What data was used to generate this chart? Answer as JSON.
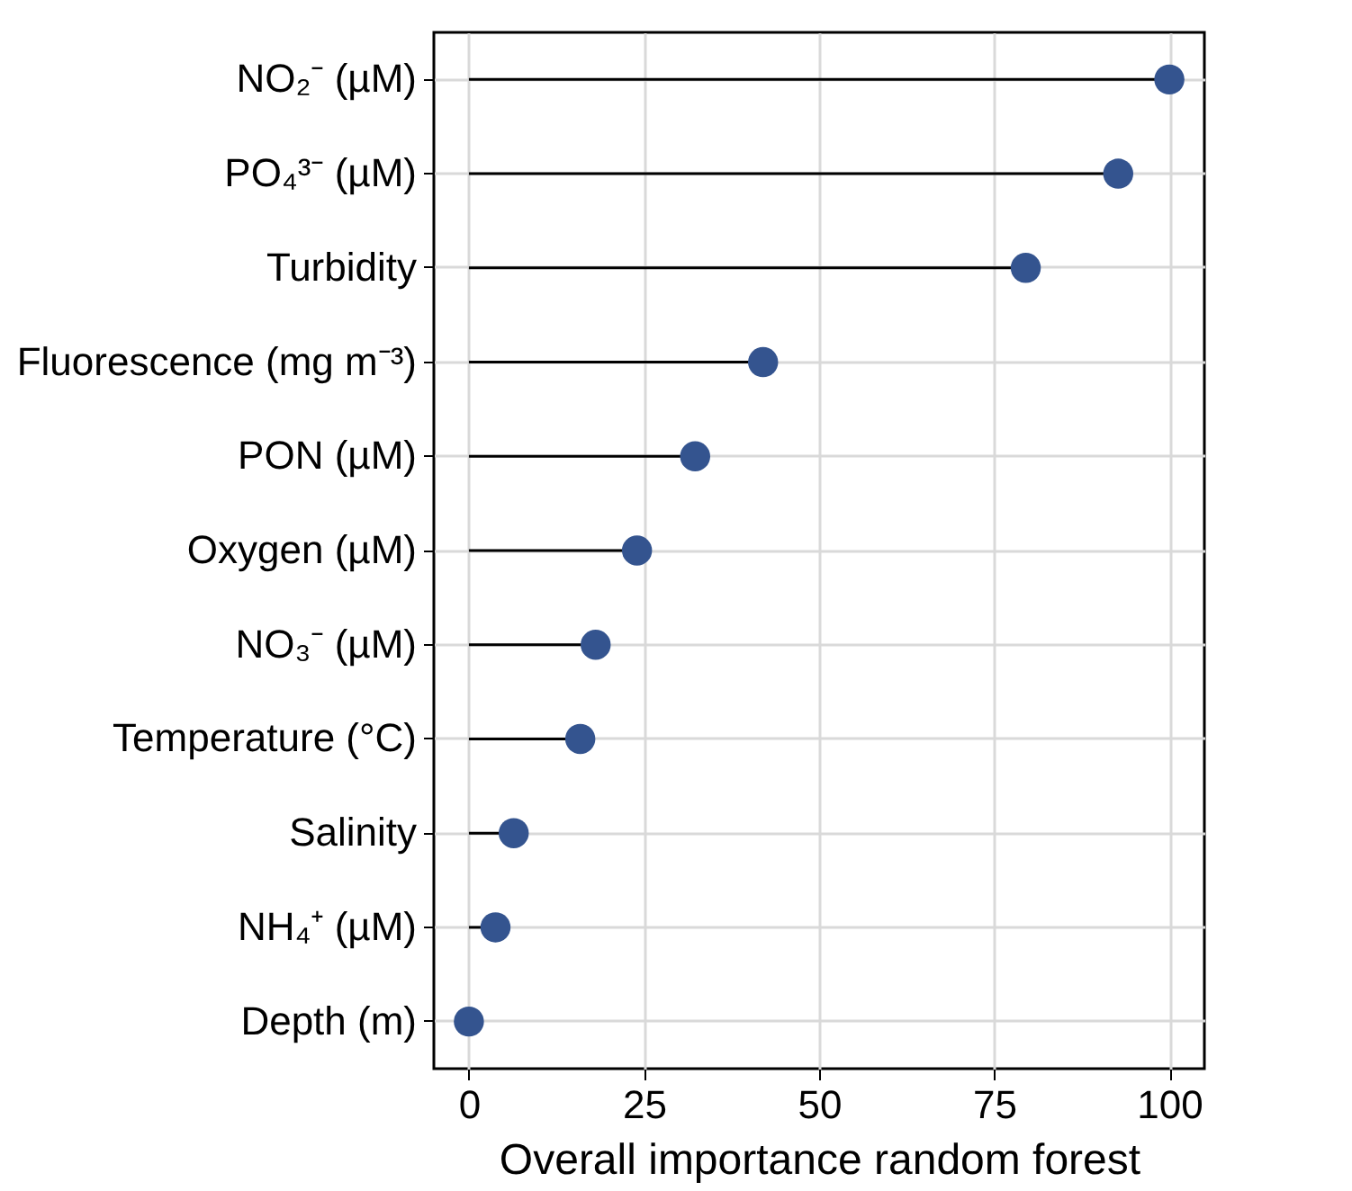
{
  "chart_data": {
    "type": "lollipop",
    "orientation": "horizontal",
    "xlabel": "Overall importance random forest",
    "categories": [
      "NO₂⁻ (µM)",
      "PO₄³⁻ (µM)",
      "Turbidity",
      "Fluorescence (mg m⁻³)",
      "PON (µM)",
      "Oxygen (µM)",
      "NO₃⁻ (µM)",
      "Temperature (°C)",
      "Salinity",
      "NH₄⁺ (µM)",
      "Depth (m)"
    ],
    "values": [
      100,
      92.7,
      79.5,
      42.0,
      32.3,
      24.0,
      18.1,
      15.9,
      6.4,
      3.8,
      0
    ],
    "color": "#34548f",
    "xlim": [
      -5,
      105
    ],
    "xticks": [
      0,
      25,
      50,
      75,
      100
    ],
    "grid": true,
    "marker": "circle"
  }
}
